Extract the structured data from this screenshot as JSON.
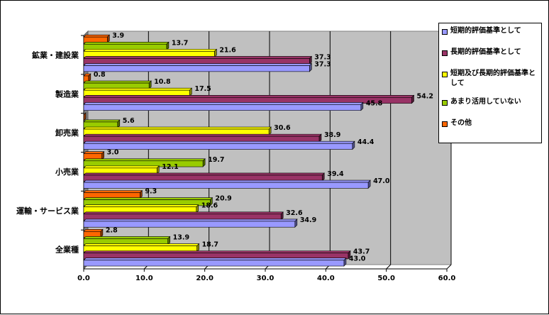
{
  "chart_data": {
    "type": "bar",
    "orientation": "horizontal",
    "categories": [
      "鉱業・建設業",
      "製造業",
      "卸売業",
      "小売業",
      "運輸・サービス業",
      "全業種"
    ],
    "series": [
      {
        "name": "短期的評価基準として",
        "color": "#9999ff",
        "values": [
          37.3,
          45.8,
          44.4,
          47.0,
          34.9,
          43.0
        ]
      },
      {
        "name": "長期的評価基準として",
        "color": "#993366",
        "values": [
          37.3,
          54.2,
          38.9,
          39.4,
          32.6,
          43.7
        ]
      },
      {
        "name": "短期及び長期的評価基準として",
        "color": "#ffff00",
        "values": [
          21.6,
          17.5,
          30.6,
          12.1,
          18.6,
          18.7
        ]
      },
      {
        "name": "あまり活用していない",
        "color": "#99cc00",
        "values": [
          13.7,
          10.8,
          5.6,
          19.7,
          20.9,
          13.9
        ]
      },
      {
        "name": "その他",
        "color": "#ff6600",
        "values": [
          3.9,
          0.8,
          0.0,
          3.0,
          9.3,
          2.8
        ]
      }
    ],
    "value_labels": [
      [
        "37.3",
        "45.8",
        "44.4",
        "47.0",
        "34.9",
        "43.0"
      ],
      [
        "37.3",
        "54.2",
        "38.9",
        "39.4",
        "32.6",
        "43.7"
      ],
      [
        "21.6",
        "17.5",
        "30.6",
        "12.1",
        "18.6",
        "18.7"
      ],
      [
        "13.7",
        "10.8",
        "5.6",
        "19.7",
        "20.9",
        "13.9"
      ],
      [
        "3.9",
        "0.8",
        "",
        "3.0",
        "9.3",
        "2.8"
      ]
    ],
    "xlim": [
      0,
      60
    ],
    "xticks": [
      "0.0",
      "10.0",
      "20.0",
      "30.0",
      "40.0",
      "50.0",
      "60.0"
    ],
    "grid": true,
    "legend_position": "right",
    "plot_background": "#c0c0c0"
  }
}
